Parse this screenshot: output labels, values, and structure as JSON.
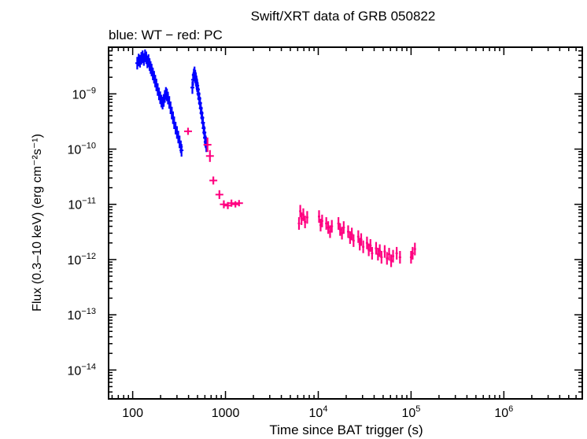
{
  "chart_data": {
    "type": "scatter",
    "title": "Swift/XRT data of GRB 050822",
    "subtitle": "blue: WT − red: PC",
    "xlabel": "Time since BAT trigger (s)",
    "ylabel": "Flux (0.3–10 keV) (erg cm⁻²s⁻¹)",
    "x_scale": "log",
    "y_scale": "log",
    "xlim": [
      55,
      7000000
    ],
    "ylim": [
      3e-15,
      7e-09
    ],
    "x_ticks": [
      {
        "value": 100,
        "base": "100",
        "exp": ""
      },
      {
        "value": 1000,
        "base": "1000",
        "exp": ""
      },
      {
        "value": 10000,
        "base": "10",
        "exp": "4"
      },
      {
        "value": 100000,
        "base": "10",
        "exp": "5"
      },
      {
        "value": 1000000,
        "base": "10",
        "exp": "6"
      }
    ],
    "y_ticks": [
      {
        "value": 1e-09,
        "base": "10",
        "exp": "−9"
      },
      {
        "value": 1e-10,
        "base": "10",
        "exp": "−10"
      },
      {
        "value": 1e-11,
        "base": "10",
        "exp": "−11"
      },
      {
        "value": 1e-12,
        "base": "10",
        "exp": "−12"
      },
      {
        "value": 1e-13,
        "base": "10",
        "exp": "−13"
      },
      {
        "value": 1e-14,
        "base": "10",
        "exp": "−14"
      }
    ],
    "grid": false,
    "series": [
      {
        "name": "WT",
        "color": "#0000ff",
        "points": [
          [
            112,
            3.6e-09,
            0.3
          ],
          [
            116,
            4.1e-09,
            0.3
          ],
          [
            120,
            3.9e-09,
            0.3
          ],
          [
            124,
            4.4e-09,
            0.3
          ],
          [
            128,
            4.7e-09,
            0.3
          ],
          [
            132,
            4.2e-09,
            0.3
          ],
          [
            136,
            4.9e-09,
            0.3
          ],
          [
            140,
            4.5e-09,
            0.3
          ],
          [
            144,
            3.8e-09,
            0.3
          ],
          [
            148,
            4e-09,
            0.3
          ],
          [
            152,
            3.4e-09,
            0.3
          ],
          [
            156,
            3e-09,
            0.3
          ],
          [
            160,
            2.7e-09,
            0.3
          ],
          [
            165,
            2.3e-09,
            0.3
          ],
          [
            170,
            2e-09,
            0.3
          ],
          [
            175,
            1.7e-09,
            0.3
          ],
          [
            180,
            1.45e-09,
            0.3
          ],
          [
            186,
            1.2e-09,
            0.3
          ],
          [
            192,
            1e-09,
            0.3
          ],
          [
            198,
            8.5e-10,
            0.3
          ],
          [
            204,
            7.4e-10,
            0.3
          ],
          [
            210,
            6.8e-10,
            0.3
          ],
          [
            216,
            7.6e-10,
            0.3
          ],
          [
            222,
            9e-10,
            0.3
          ],
          [
            228,
            1.02e-09,
            0.3
          ],
          [
            234,
            9.6e-10,
            0.3
          ],
          [
            240,
            8.4e-10,
            0.3
          ],
          [
            248,
            7e-10,
            0.3
          ],
          [
            256,
            5.6e-10,
            0.3
          ],
          [
            264,
            4.5e-10,
            0.3
          ],
          [
            272,
            3.7e-10,
            0.3
          ],
          [
            280,
            3e-10,
            0.3
          ],
          [
            290,
            2.4e-10,
            0.3
          ],
          [
            300,
            2e-10,
            0.3
          ],
          [
            310,
            1.65e-10,
            0.3
          ],
          [
            320,
            1.35e-10,
            0.3
          ],
          [
            330,
            1.1e-10,
            0.3
          ],
          [
            336,
            9.5e-11,
            0.3
          ],
          [
            440,
            1.3e-09,
            0.3
          ],
          [
            448,
            1.8e-09,
            0.3
          ],
          [
            456,
            2.2e-09,
            0.3
          ],
          [
            464,
            2.4e-09,
            0.3
          ],
          [
            472,
            2.1e-09,
            0.3
          ],
          [
            480,
            1.85e-09,
            0.3
          ],
          [
            488,
            1.6e-09,
            0.3
          ],
          [
            496,
            1.4e-09,
            0.3
          ],
          [
            504,
            1.2e-09,
            0.3
          ],
          [
            512,
            1e-09,
            0.3
          ],
          [
            522,
            8.2e-10,
            0.3
          ],
          [
            532,
            6.8e-10,
            0.3
          ],
          [
            542,
            5.5e-10,
            0.3
          ],
          [
            552,
            4.5e-10,
            0.3
          ],
          [
            562,
            3.7e-10,
            0.3
          ],
          [
            572,
            3e-10,
            0.3
          ],
          [
            582,
            2.4e-10,
            0.3
          ],
          [
            592,
            2e-10,
            0.3
          ],
          [
            602,
            1.6e-10,
            0.3
          ],
          [
            612,
            1.35e-10,
            0.3
          ],
          [
            622,
            1.15e-10,
            0.3
          ]
        ]
      },
      {
        "name": "PC",
        "color": "#ff0080",
        "points": [
          [
            395,
            2.1e-10,
            0.16
          ],
          [
            640,
            1.2e-10,
            0.35
          ],
          [
            680,
            7.5e-11,
            0.28
          ],
          [
            740,
            2.7e-11,
            0.18
          ],
          [
            860,
            1.5e-11,
            0.2
          ],
          [
            960,
            1e-11,
            0.18
          ],
          [
            1060,
            9.5e-12,
            0.16
          ],
          [
            1160,
            1.05e-11,
            0.16
          ],
          [
            1280,
            1e-11,
            0.14
          ],
          [
            1400,
            1.05e-11,
            0.14
          ],
          [
            6200,
            4.5e-12,
            0.3
          ],
          [
            6400,
            7.5e-12,
            0.3
          ],
          [
            6600,
            5.5e-12,
            0.3
          ],
          [
            6900,
            6.5e-12,
            0.3
          ],
          [
            7200,
            4.8e-12,
            0.3
          ],
          [
            7600,
            5.8e-12,
            0.3
          ],
          [
            10200,
            6e-12,
            0.3
          ],
          [
            10600,
            4.2e-12,
            0.3
          ],
          [
            11000,
            5e-12,
            0.3
          ],
          [
            12200,
            4.5e-12,
            0.3
          ],
          [
            12800,
            3.8e-12,
            0.3
          ],
          [
            13400,
            3.2e-12,
            0.3
          ],
          [
            14000,
            4e-12,
            0.3
          ],
          [
            16500,
            4.5e-12,
            0.3
          ],
          [
            17200,
            3.5e-12,
            0.3
          ],
          [
            18000,
            3e-12,
            0.3
          ],
          [
            18800,
            3.8e-12,
            0.3
          ],
          [
            21000,
            3.2e-12,
            0.3
          ],
          [
            22000,
            2.5e-12,
            0.3
          ],
          [
            23000,
            2.9e-12,
            0.3
          ],
          [
            24000,
            2.2e-12,
            0.3
          ],
          [
            27000,
            2.6e-12,
            0.3
          ],
          [
            28000,
            1.9e-12,
            0.3
          ],
          [
            29000,
            2.3e-12,
            0.3
          ],
          [
            30500,
            1.7e-12,
            0.3
          ],
          [
            33500,
            2e-12,
            0.3
          ],
          [
            35000,
            1.5e-12,
            0.3
          ],
          [
            36500,
            1.8e-12,
            0.3
          ],
          [
            38000,
            1.3e-12,
            0.3
          ],
          [
            42000,
            1.6e-12,
            0.3
          ],
          [
            44000,
            1.25e-12,
            0.3
          ],
          [
            46000,
            1.45e-12,
            0.3
          ],
          [
            48000,
            1.1e-12,
            0.3
          ],
          [
            52000,
            1.4e-12,
            0.3
          ],
          [
            55000,
            1.05e-12,
            0.3
          ],
          [
            58000,
            1.25e-12,
            0.3
          ],
          [
            61000,
            9.5e-13,
            0.3
          ],
          [
            64000,
            1.15e-12,
            0.3
          ],
          [
            70000,
            1.3e-12,
            0.3
          ],
          [
            76000,
            1.1e-12,
            0.3
          ],
          [
            100000,
            1.1e-12,
            0.3
          ],
          [
            104000,
            1.3e-12,
            0.3
          ],
          [
            110000,
            1.55e-12,
            0.3
          ]
        ]
      }
    ]
  }
}
